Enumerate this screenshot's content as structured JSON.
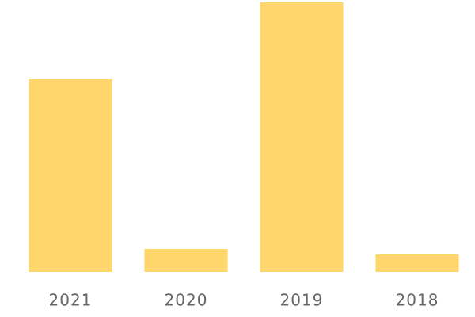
{
  "chart_data": {
    "type": "bar",
    "categories": [
      "2021",
      "2020",
      "2019",
      "2018"
    ],
    "values": [
      243,
      29,
      340,
      22
    ],
    "color": "#fed66b",
    "ylim": [
      0,
      340
    ]
  }
}
